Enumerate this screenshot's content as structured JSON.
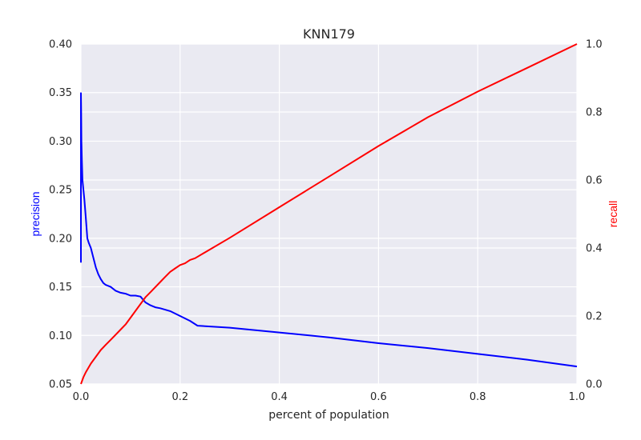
{
  "chart_data": {
    "type": "line",
    "title": "KNN179",
    "xlabel": "percent of population",
    "ylabel_left": "precision",
    "ylabel_right": "recall",
    "xlim": [
      0.0,
      1.0
    ],
    "ylim_left": [
      0.05,
      0.4
    ],
    "ylim_right": [
      0.0,
      1.0
    ],
    "x_ticks": [
      "0.0",
      "0.2",
      "0.4",
      "0.6",
      "0.8",
      "1.0"
    ],
    "y_left_ticks": [
      "0.05",
      "0.10",
      "0.15",
      "0.20",
      "0.25",
      "0.30",
      "0.35",
      "0.40"
    ],
    "y_right_ticks": [
      "0.0",
      "0.2",
      "0.4",
      "0.6",
      "0.8",
      "1.0"
    ],
    "grid": true,
    "background": "#eaeaf2",
    "series": [
      {
        "name": "precision",
        "axis": "left",
        "color": "#0000ff",
        "x": [
          0.0,
          0.0005,
          0.001,
          0.002,
          0.003,
          0.005,
          0.007,
          0.01,
          0.013,
          0.016,
          0.02,
          0.025,
          0.03,
          0.035,
          0.04,
          0.045,
          0.05,
          0.06,
          0.07,
          0.08,
          0.09,
          0.1,
          0.11,
          0.12,
          0.13,
          0.14,
          0.15,
          0.16,
          0.18,
          0.2,
          0.22,
          0.235,
          0.3,
          0.4,
          0.5,
          0.6,
          0.7,
          0.8,
          0.9,
          1.0
        ],
        "y": [
          0.35,
          0.33,
          0.3,
          0.28,
          0.26,
          0.25,
          0.24,
          0.22,
          0.2,
          0.195,
          0.19,
          0.18,
          0.17,
          0.163,
          0.158,
          0.154,
          0.152,
          0.15,
          0.146,
          0.144,
          0.143,
          0.141,
          0.141,
          0.14,
          0.134,
          0.131,
          0.129,
          0.128,
          0.125,
          0.12,
          0.115,
          0.11,
          0.108,
          0.103,
          0.098,
          0.092,
          0.087,
          0.081,
          0.075,
          0.068
        ]
      },
      {
        "name": "recall",
        "axis": "right",
        "color": "#ff0000",
        "x": [
          0.0,
          0.005,
          0.01,
          0.02,
          0.03,
          0.04,
          0.05,
          0.06,
          0.07,
          0.08,
          0.09,
          0.1,
          0.11,
          0.12,
          0.13,
          0.14,
          0.15,
          0.16,
          0.17,
          0.18,
          0.19,
          0.2,
          0.21,
          0.22,
          0.23,
          0.3,
          0.4,
          0.5,
          0.6,
          0.7,
          0.8,
          0.9,
          1.0
        ],
        "y": [
          0.0,
          0.02,
          0.035,
          0.06,
          0.08,
          0.1,
          0.115,
          0.13,
          0.145,
          0.16,
          0.175,
          0.195,
          0.215,
          0.235,
          0.255,
          0.27,
          0.285,
          0.3,
          0.315,
          0.33,
          0.34,
          0.35,
          0.355,
          0.365,
          0.37,
          0.43,
          0.52,
          0.61,
          0.7,
          0.785,
          0.86,
          0.93,
          1.0
        ]
      }
    ]
  }
}
